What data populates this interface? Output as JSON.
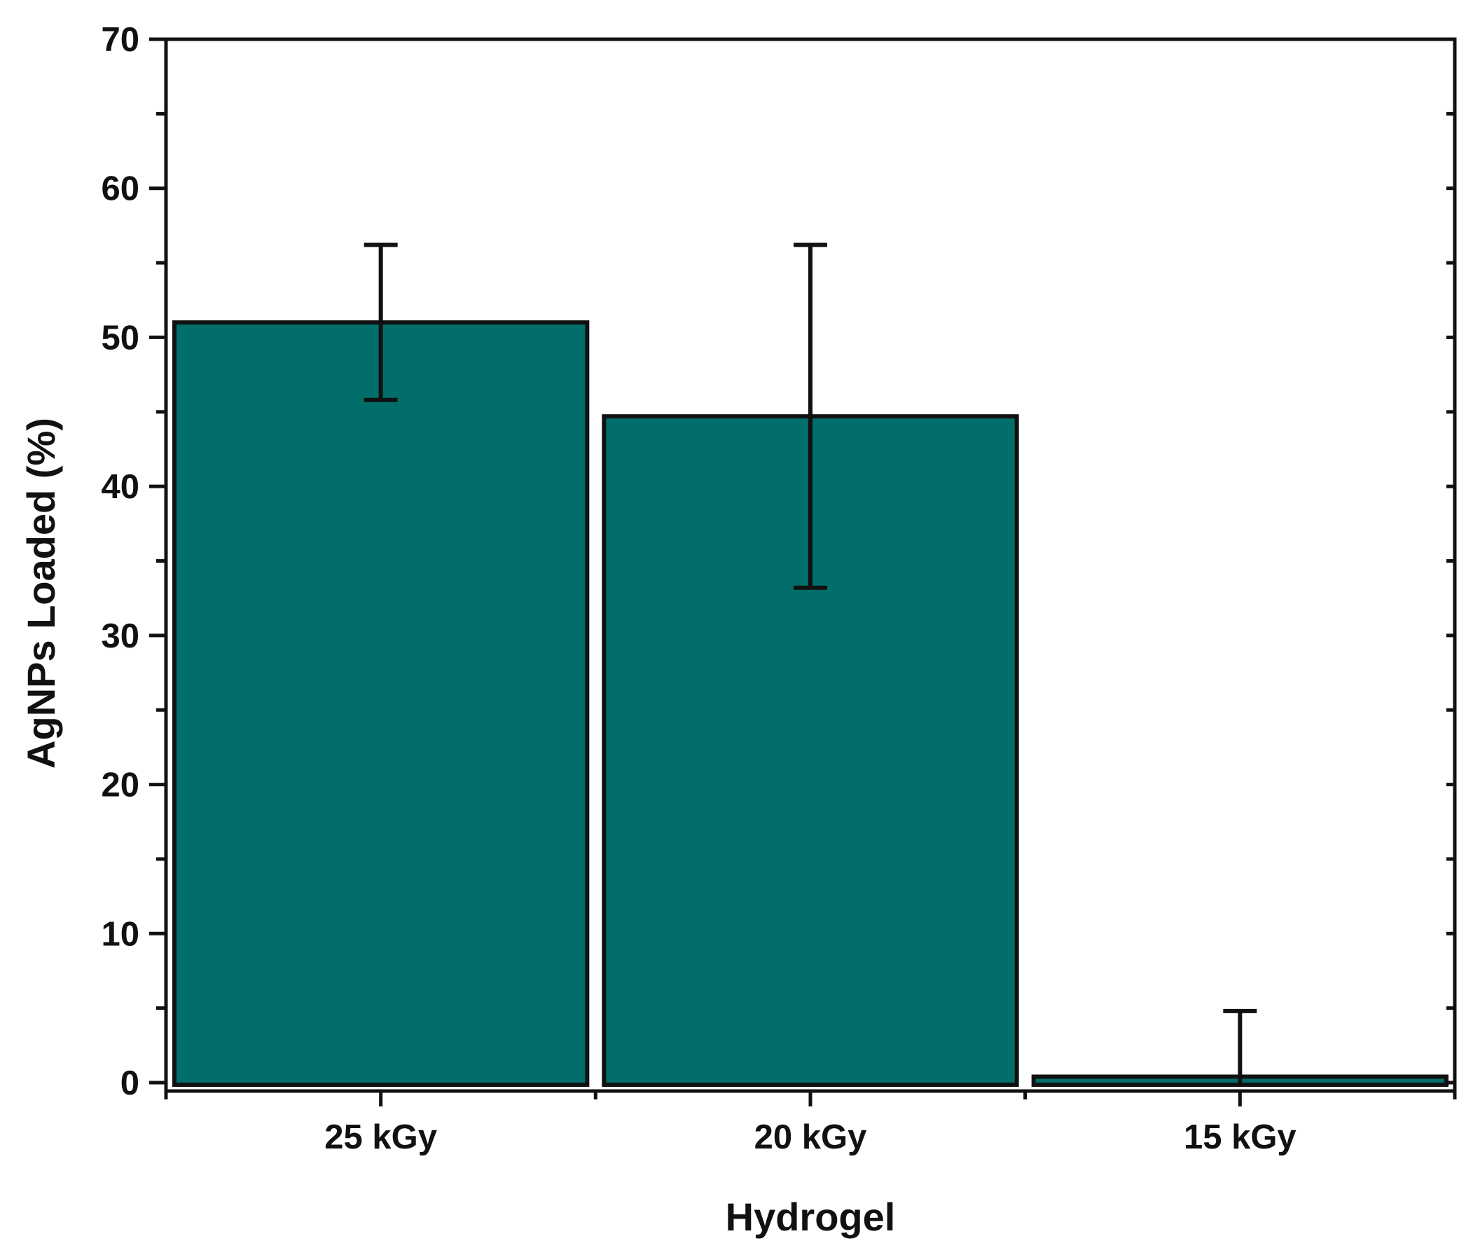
{
  "chart_data": {
    "type": "bar",
    "categories": [
      "25 kGy",
      "20 kGy",
      "15 kGy"
    ],
    "values": [
      51,
      44.7,
      0.4
    ],
    "errors": [
      5.2,
      11.5,
      4.4
    ],
    "title": "",
    "xlabel": "Hydrogel",
    "ylabel": "AgNPs Loaded (%)",
    "ylim": [
      0,
      70
    ],
    "yticks": [
      "0",
      "10",
      "20",
      "30",
      "40",
      "50",
      "60",
      "70"
    ],
    "bar_color": "#026e6b",
    "grid": false,
    "legend": "none"
  }
}
